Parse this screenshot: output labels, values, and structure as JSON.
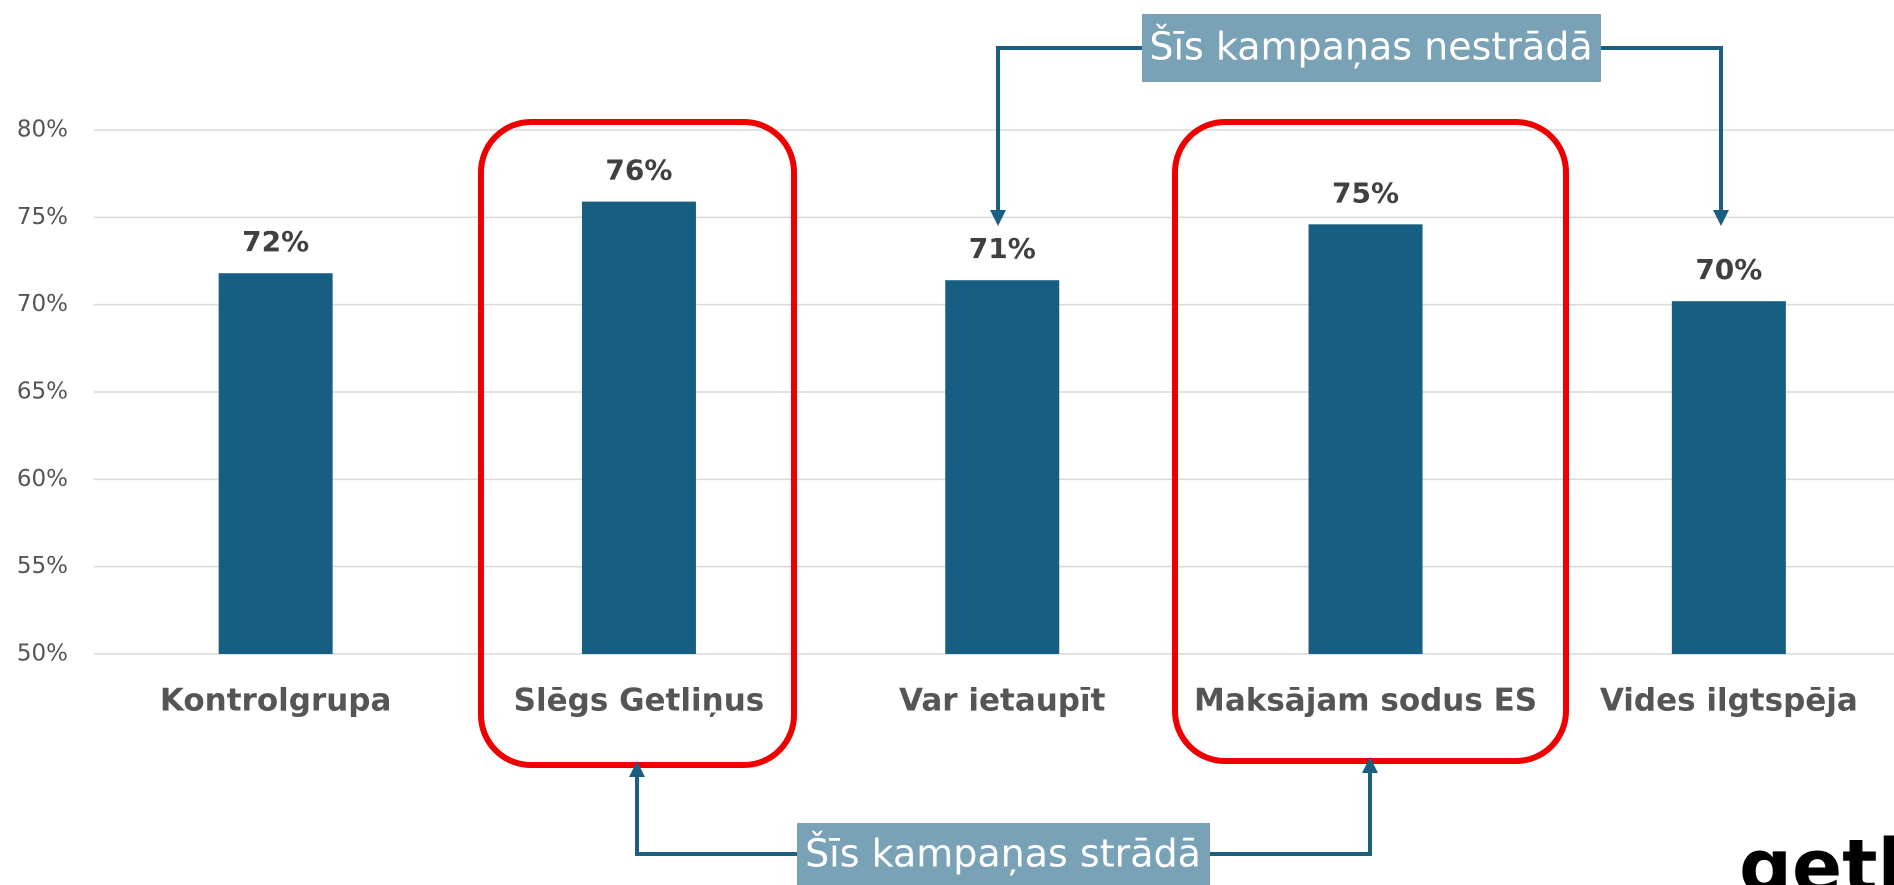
{
  "chart_data": {
    "type": "bar",
    "categories": [
      "Kontrolgrupa",
      "Slēgs Getliņus",
      "Var ietaupīt",
      "Maksājam sodus ES",
      "Vides ilgtspēja"
    ],
    "values": [
      71.8,
      75.9,
      71.4,
      74.6,
      70.2
    ],
    "value_labels": [
      "72%",
      "76%",
      "71%",
      "75%",
      "70%"
    ],
    "color": "#175f82",
    "ylim": [
      50,
      80
    ],
    "yticks": [
      {
        "value": 50,
        "label": "50%"
      },
      {
        "value": 55,
        "label": "55%"
      },
      {
        "value": 60,
        "label": "60%"
      },
      {
        "value": 65,
        "label": "65%"
      },
      {
        "value": 70,
        "label": "70%"
      },
      {
        "value": 75,
        "label": "75%"
      },
      {
        "value": 80,
        "label": "80%"
      }
    ],
    "grid": true,
    "annotations": [
      "Šīs kampaņas nestrādā",
      "Šīs kampaņas strādā"
    ],
    "logo": "getli"
  }
}
